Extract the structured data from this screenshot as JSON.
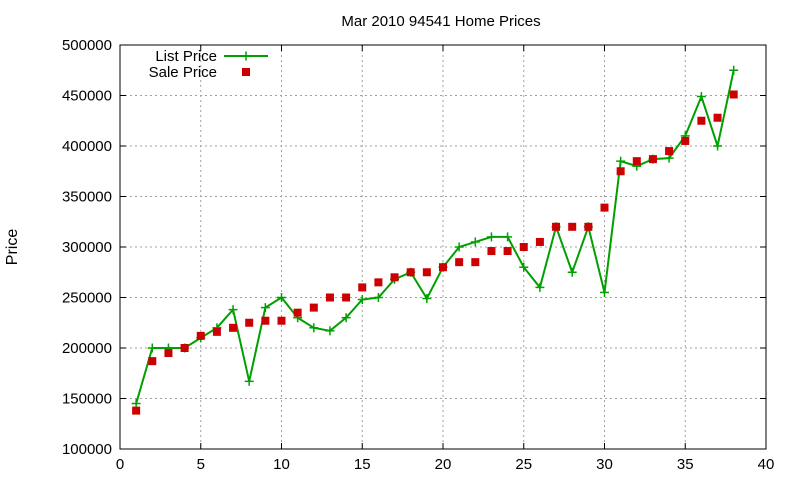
{
  "chart_data": {
    "type": "line",
    "title": "Mar 2010 94541 Home Prices",
    "xlabel": "",
    "ylabel": "Price",
    "xlim": [
      0,
      40
    ],
    "ylim": [
      100000,
      500000
    ],
    "x_ticks": [
      0,
      5,
      10,
      15,
      20,
      25,
      30,
      35,
      40
    ],
    "y_ticks": [
      100000,
      150000,
      200000,
      250000,
      300000,
      350000,
      400000,
      450000,
      500000
    ],
    "grid": true,
    "legend_position": "top-left",
    "series": [
      {
        "name": "List Price",
        "style": "line-plus",
        "color": "#00a000",
        "x": [
          1,
          2,
          3,
          4,
          5,
          6,
          7,
          8,
          9,
          10,
          11,
          12,
          13,
          14,
          15,
          16,
          17,
          18,
          19,
          20,
          21,
          22,
          23,
          24,
          25,
          26,
          27,
          28,
          29,
          30,
          31,
          32,
          33,
          34,
          35,
          36,
          37,
          38
        ],
        "values": [
          145000,
          200000,
          200000,
          200000,
          210000,
          220000,
          238000,
          167000,
          240000,
          250000,
          230000,
          220000,
          217000,
          230000,
          248000,
          250000,
          268000,
          275000,
          249000,
          280000,
          300000,
          305000,
          310000,
          310000,
          280000,
          260000,
          320000,
          275000,
          320000,
          255000,
          385000,
          380000,
          387000,
          388000,
          410000,
          449000,
          400000,
          475000
        ]
      },
      {
        "name": "Sale Price",
        "style": "square",
        "color": "#cc0000",
        "x": [
          1,
          2,
          3,
          4,
          5,
          6,
          7,
          8,
          9,
          10,
          11,
          12,
          13,
          14,
          15,
          16,
          17,
          18,
          19,
          20,
          21,
          22,
          23,
          24,
          25,
          26,
          27,
          28,
          29,
          30,
          31,
          32,
          33,
          34,
          35,
          36,
          37,
          38
        ],
        "values": [
          138000,
          187000,
          195000,
          200000,
          212000,
          216000,
          220000,
          225000,
          227000,
          227000,
          235000,
          240000,
          250000,
          250000,
          260000,
          265000,
          270000,
          275000,
          275000,
          280000,
          285000,
          285000,
          296000,
          296000,
          300000,
          305000,
          320000,
          320000,
          320000,
          339000,
          375000,
          385000,
          387000,
          395000,
          405000,
          425000,
          428000,
          451000
        ]
      }
    ]
  }
}
